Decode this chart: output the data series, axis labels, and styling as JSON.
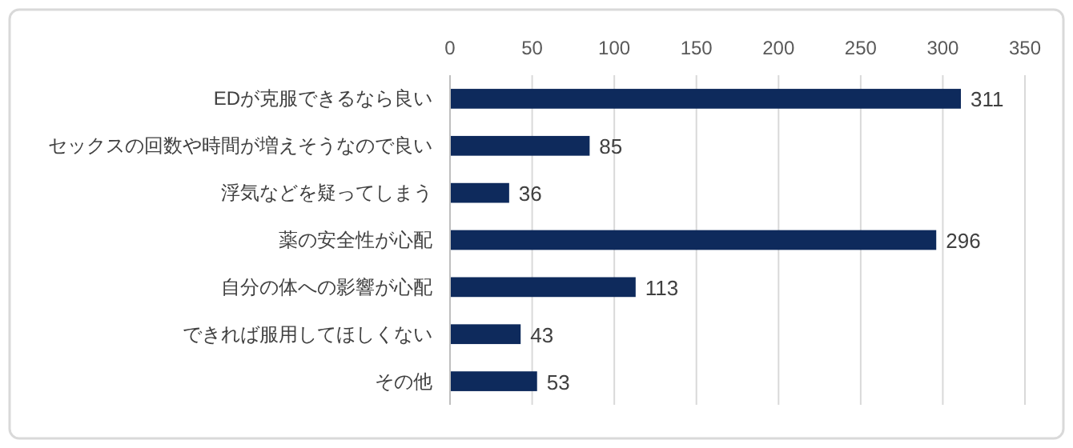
{
  "chart_data": {
    "type": "bar",
    "orientation": "horizontal",
    "categories": [
      "EDが克服できるなら良い",
      "セックスの回数や時間が増えそうなので良い",
      "浮気などを疑ってしまう",
      "薬の安全性が心配",
      "自分の体への影響が心配",
      "できれば服用してほしくない",
      "その他"
    ],
    "values": [
      311,
      85,
      36,
      296,
      113,
      43,
      53
    ],
    "color": "#0e2a5c",
    "xlim": [
      0,
      350
    ],
    "xticks": [
      0,
      50,
      100,
      150,
      200,
      250,
      300,
      350
    ],
    "grid": "x",
    "data_labels": true
  }
}
